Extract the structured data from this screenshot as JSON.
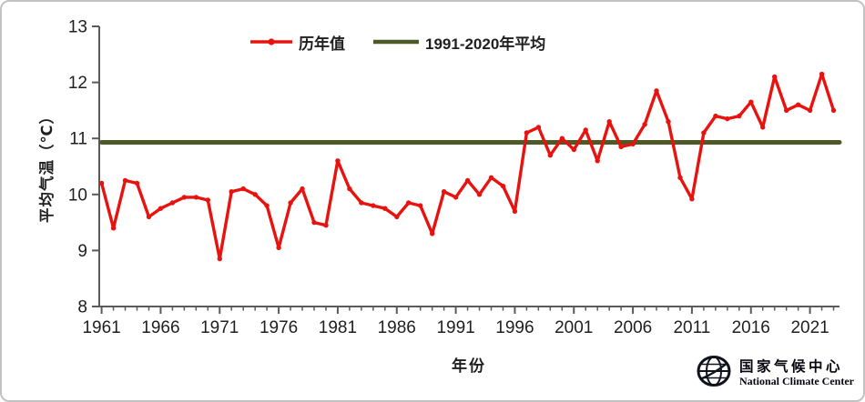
{
  "chart_data": {
    "type": "line",
    "title": "",
    "xlabel": "年份",
    "ylabel": "平均气温（℃）",
    "ylim": [
      8,
      13
    ],
    "xlim": [
      1960.8,
      2023.5
    ],
    "yticks": [
      8,
      9,
      10,
      11,
      12,
      13
    ],
    "xticks": [
      1961,
      1966,
      1971,
      1976,
      1981,
      1986,
      1991,
      1996,
      2001,
      2006,
      2011,
      2016,
      2021
    ],
    "grid": false,
    "legend_position": "top-center",
    "series": [
      {
        "name": "历年值",
        "type": "line-markers",
        "color": "#e8120e",
        "x": [
          1961,
          1962,
          1963,
          1964,
          1965,
          1966,
          1967,
          1968,
          1969,
          1970,
          1971,
          1972,
          1973,
          1974,
          1975,
          1976,
          1977,
          1978,
          1979,
          1980,
          1981,
          1982,
          1983,
          1984,
          1985,
          1986,
          1987,
          1988,
          1989,
          1990,
          1991,
          1992,
          1993,
          1994,
          1995,
          1996,
          1997,
          1998,
          1999,
          2000,
          2001,
          2002,
          2003,
          2004,
          2005,
          2006,
          2007,
          2008,
          2009,
          2010,
          2011,
          2012,
          2013,
          2014,
          2015,
          2016,
          2017,
          2018,
          2019,
          2020,
          2021,
          2022,
          2023
        ],
        "values": [
          10.2,
          9.4,
          10.25,
          10.2,
          9.6,
          9.75,
          9.85,
          9.95,
          9.95,
          9.9,
          8.85,
          10.05,
          10.1,
          10.0,
          9.8,
          9.05,
          9.85,
          10.1,
          9.5,
          9.45,
          10.6,
          10.1,
          9.85,
          9.8,
          9.75,
          9.6,
          9.85,
          9.8,
          9.3,
          10.05,
          9.95,
          10.25,
          10.0,
          10.3,
          10.15,
          9.7,
          11.1,
          11.2,
          10.7,
          11.0,
          10.8,
          11.15,
          10.6,
          11.3,
          10.85,
          10.9,
          11.25,
          11.85,
          11.3,
          10.3,
          9.92,
          11.1,
          11.4,
          11.35,
          11.4,
          11.65,
          11.2,
          12.1,
          11.5,
          11.6,
          11.5,
          12.15,
          11.5
        ]
      },
      {
        "name": "1991-2020年平均",
        "type": "hline",
        "color": "#4d5a28",
        "value": 10.93
      }
    ]
  },
  "footer": {
    "org_cn": "国家气候中心",
    "org_en": "National Climate Center"
  }
}
